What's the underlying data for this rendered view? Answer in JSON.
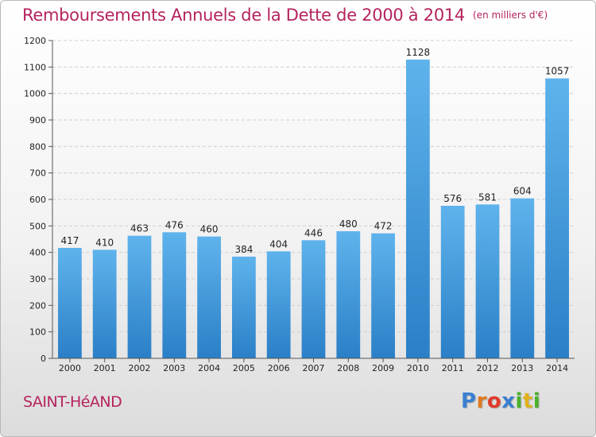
{
  "title": "Remboursements Annuels de la Dette de 2000 à 2014",
  "unit": "(en milliers d'€)",
  "city": "SAINT-HéAND",
  "logo": {
    "letters": [
      "P",
      "r",
      "o",
      "x",
      "i",
      "t",
      "i"
    ],
    "colors": [
      "#3a7fd0",
      "#e07a1f",
      "#e03a2a",
      "#3a7fd0",
      "#49b02a",
      "#e0b21a",
      "#49b02a"
    ]
  },
  "chart_data": {
    "type": "bar",
    "title": "Remboursements Annuels de la Dette de 2000 à 2014",
    "categories": [
      "2000",
      "2001",
      "2002",
      "2003",
      "2004",
      "2005",
      "2006",
      "2007",
      "2008",
      "2009",
      "2010",
      "2011",
      "2012",
      "2013",
      "2014"
    ],
    "values": [
      417,
      410,
      463,
      476,
      460,
      384,
      404,
      446,
      480,
      472,
      1128,
      576,
      581,
      604,
      1057
    ],
    "ylim": [
      0,
      1200
    ],
    "yticks": [
      0,
      100,
      200,
      300,
      400,
      500,
      600,
      700,
      800,
      900,
      1000,
      1100,
      1200
    ],
    "grid": true,
    "bar_color": "#4a9fe0"
  }
}
